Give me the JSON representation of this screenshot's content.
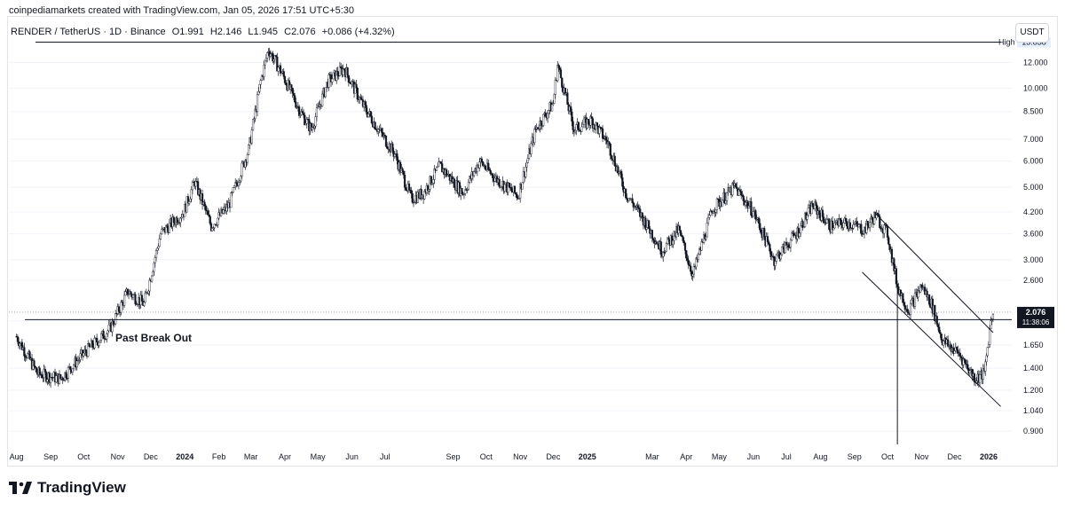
{
  "header": {
    "attribution": "coinpediamarkets created with TradingView.com, Jan 05, 2026 17:51 UTC+5:30",
    "symbol": "RENDER / TetherUS · 1D · Binance",
    "open": "O1.991",
    "high": "H2.146",
    "low": "L1.945",
    "close": "C2.076",
    "change": "+0.086 (+4.32%)",
    "unit": "USDT"
  },
  "annotations": {
    "break_out": "Past Break Out",
    "high_label": "High",
    "high_value": "13.838",
    "last_price": "2.076",
    "countdown": "11:38:06"
  },
  "brand": {
    "name": "TradingView"
  },
  "colors": {
    "candle": "#131722",
    "line": "#131722",
    "bg": "#ffffff",
    "grid": "#f0f3fa"
  },
  "chart_data": {
    "type": "candlestick",
    "scale": "log",
    "ylim": [
      0.8,
      14.5
    ],
    "y_ticks": [
      "0.900",
      "1.040",
      "1.200",
      "1.400",
      "1.650",
      "1.950",
      "2.600",
      "3.000",
      "3.600",
      "4.200",
      "5.000",
      "6.000",
      "7.000",
      "8.500",
      "10.000",
      "12.000"
    ],
    "x_ticks": [
      "Aug",
      "Sep",
      "Oct",
      "Nov",
      "Dec",
      "2024",
      "Feb",
      "Mar",
      "Apr",
      "May",
      "Jun",
      "Jul",
      "Sep",
      "Oct",
      "Nov",
      "Dec",
      "2025",
      "Mar",
      "Apr",
      "May",
      "Jun",
      "Jul",
      "Aug",
      "Sep",
      "Oct",
      "Nov",
      "Dec",
      "2026"
    ],
    "approx_close_path": [
      [
        "2023-08-01",
        1.75
      ],
      [
        "2023-08-20",
        1.35
      ],
      [
        "2023-09-10",
        1.3
      ],
      [
        "2023-10-01",
        1.55
      ],
      [
        "2023-10-25",
        1.85
      ],
      [
        "2023-11-10",
        2.4
      ],
      [
        "2023-11-25",
        2.2
      ],
      [
        "2023-12-10",
        3.6
      ],
      [
        "2023-12-31",
        4.2
      ],
      [
        "2024-01-10",
        5.2
      ],
      [
        "2024-01-25",
        3.8
      ],
      [
        "2024-02-10",
        4.4
      ],
      [
        "2024-02-28",
        6.5
      ],
      [
        "2024-03-10",
        10.5
      ],
      [
        "2024-03-17",
        13.2
      ],
      [
        "2024-03-30",
        11.0
      ],
      [
        "2024-04-15",
        8.5
      ],
      [
        "2024-04-25",
        7.5
      ],
      [
        "2024-05-10",
        10.5
      ],
      [
        "2024-05-25",
        11.5
      ],
      [
        "2024-06-10",
        9.0
      ],
      [
        "2024-06-25",
        7.5
      ],
      [
        "2024-07-10",
        6.3
      ],
      [
        "2024-07-25",
        4.6
      ],
      [
        "2024-08-05",
        4.8
      ],
      [
        "2024-08-20",
        5.8
      ],
      [
        "2024-09-10",
        4.8
      ],
      [
        "2024-09-25",
        6.0
      ],
      [
        "2024-10-10",
        5.3
      ],
      [
        "2024-10-30",
        4.7
      ],
      [
        "2024-11-15",
        7.5
      ],
      [
        "2024-12-01",
        9.0
      ],
      [
        "2024-12-05",
        11.8
      ],
      [
        "2024-12-20",
        7.5
      ],
      [
        "2025-01-05",
        8.0
      ],
      [
        "2025-01-20",
        6.8
      ],
      [
        "2025-02-05",
        4.8
      ],
      [
        "2025-02-25",
        3.8
      ],
      [
        "2025-03-10",
        3.2
      ],
      [
        "2025-03-25",
        3.7
      ],
      [
        "2025-04-07",
        2.7
      ],
      [
        "2025-04-25",
        4.3
      ],
      [
        "2025-05-15",
        5.0
      ],
      [
        "2025-06-01",
        4.2
      ],
      [
        "2025-06-20",
        3.0
      ],
      [
        "2025-07-10",
        3.6
      ],
      [
        "2025-07-25",
        4.4
      ],
      [
        "2025-08-10",
        3.8
      ],
      [
        "2025-08-25",
        3.9
      ],
      [
        "2025-09-10",
        3.7
      ],
      [
        "2025-09-20",
        4.1
      ],
      [
        "2025-10-01",
        3.6
      ],
      [
        "2025-10-10",
        2.5
      ],
      [
        "2025-10-20",
        2.1
      ],
      [
        "2025-11-01",
        2.5
      ],
      [
        "2025-11-10",
        2.2
      ],
      [
        "2025-11-20",
        1.7
      ],
      [
        "2025-12-05",
        1.55
      ],
      [
        "2025-12-20",
        1.3
      ],
      [
        "2025-12-28",
        1.35
      ],
      [
        "2026-01-03",
        1.95
      ],
      [
        "2026-01-05",
        2.076
      ]
    ],
    "levels": [
      {
        "name": "High",
        "value": 13.838
      },
      {
        "name": "Past Break Out",
        "value": 1.97
      }
    ]
  }
}
